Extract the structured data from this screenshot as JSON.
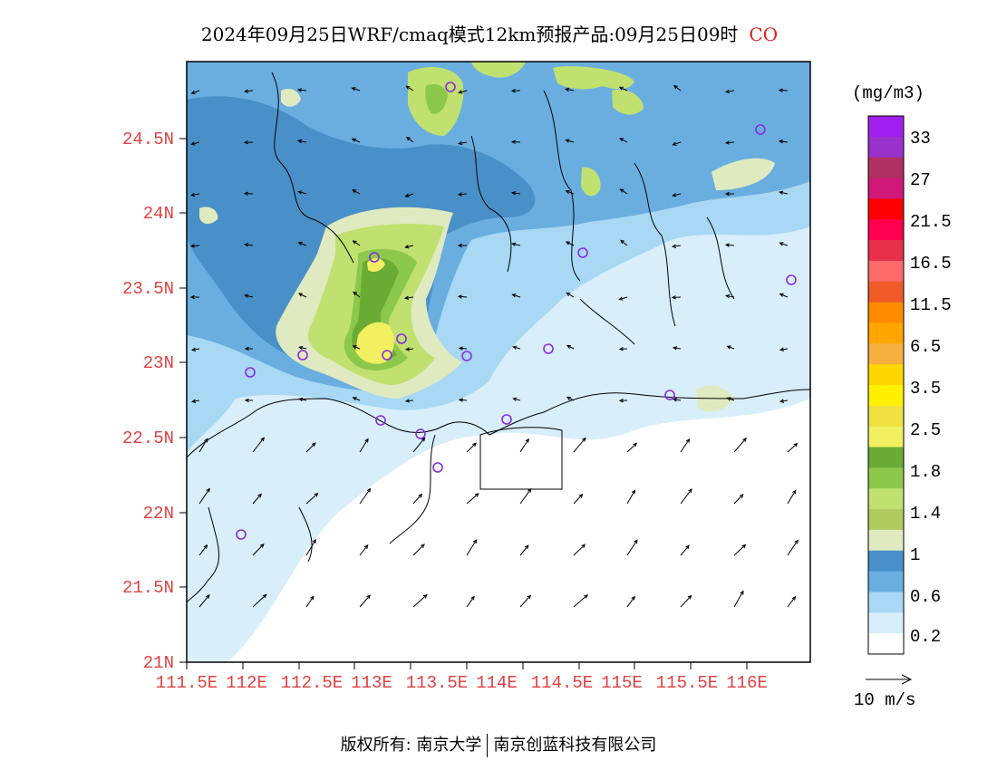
{
  "title": {
    "main": "2024年09月25日WRF/cmaq模式12km预报产品:09月25日09时",
    "species": "CO"
  },
  "lat_labels": [
    "24.5N",
    "24N",
    "23.5N",
    "23N",
    "22.5N",
    "22N",
    "21.5N",
    "21N"
  ],
  "lon_labels": [
    "111.5E",
    "112E",
    "112.5E",
    "113E",
    "113.5E",
    "114E",
    "114.5E",
    "115E",
    "115.5E",
    "116E"
  ],
  "legend": {
    "unit": "(mg/m3)",
    "labels": [
      "33",
      "27",
      "21.5",
      "16.5",
      "11.5",
      "6.5",
      "3.5",
      "2.5",
      "1.8",
      "1.4",
      "1",
      "0.6",
      "0.2"
    ],
    "colors": [
      "#a020f0",
      "#9932cc",
      "#b03060",
      "#d01878",
      "#ff0000",
      "#ff0050",
      "#e8304a",
      "#ff6a6a",
      "#f05a28",
      "#ff8c00",
      "#ffa500",
      "#f5b040",
      "#ffd700",
      "#fff000",
      "#f0e040",
      "#f0f060",
      "#6aab35",
      "#8cc84b",
      "#c0e070",
      "#b0cc60",
      "#dfeac0",
      "#4a90c8",
      "#6aaee0",
      "#a8d8f4",
      "#d8eefb",
      "#ffffff"
    ]
  },
  "vector_ref": {
    "label": "10 m/s"
  },
  "footer": {
    "left": "版权所有: 南京大学",
    "right": "南京创蓝科技有限公司"
  }
}
